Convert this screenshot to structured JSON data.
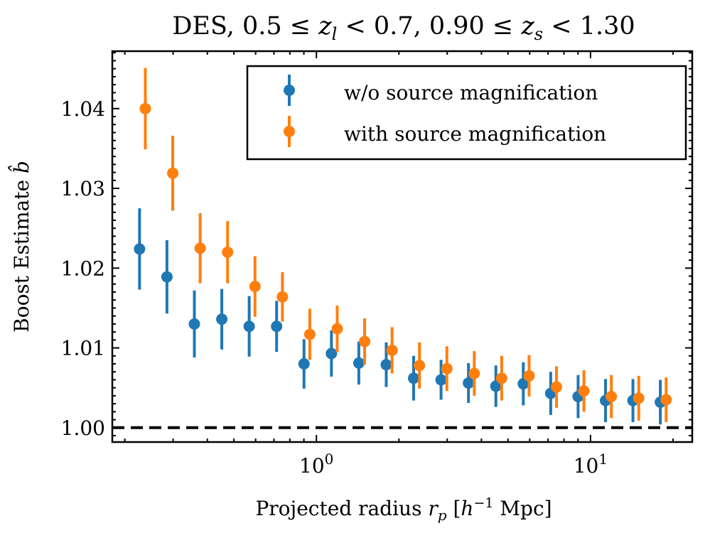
{
  "chart_data": {
    "type": "scatter",
    "title": "DES, 0.5 ≤ z_l < 0.7, 0.90 ≤ z_s < 1.30",
    "title_parts": [
      "DES, 0.5 ≤ ",
      "z",
      "l",
      " < 0.7, 0.90 ≤ ",
      "z",
      "s",
      " < 1.30"
    ],
    "xlabel": "Projected radius r_p [h^-1 Mpc]",
    "xlabel_parts": [
      "Projected radius ",
      "r",
      "p",
      " [",
      "h",
      "−1",
      " Mpc]"
    ],
    "ylabel": "Boost Estimate b̂",
    "ylabel_parts": [
      "Boost Estimate ",
      "b̂"
    ],
    "xscale": "log",
    "xlim": [
      0.18,
      23.5
    ],
    "ylim": [
      0.9982,
      1.0472
    ],
    "yticks": [
      1.0,
      1.01,
      1.02,
      1.03,
      1.04
    ],
    "ytick_labels": [
      "1.00",
      "1.01",
      "1.02",
      "1.03",
      "1.04"
    ],
    "xticks": [
      1,
      10
    ],
    "xtick_labels": [
      {
        "base": "10",
        "exp": "0"
      },
      {
        "base": "10",
        "exp": "1"
      }
    ],
    "reference_line": {
      "y": 1.0,
      "style": "dashed",
      "color": "#000000"
    },
    "grid": false,
    "legend_position": "top-right",
    "series": [
      {
        "name": "w/o source magnification",
        "color": "#1f77b4",
        "x": [
          0.2263,
          0.2849,
          0.3587,
          0.4516,
          0.5685,
          0.7157,
          0.901,
          1.1343,
          1.428,
          1.7977,
          2.2632,
          2.8492,
          3.5869,
          4.5156,
          5.6849,
          7.1568,
          9.01,
          11.343,
          14.28,
          17.977
        ],
        "y": [
          1.0224,
          1.0189,
          1.013,
          1.0136,
          1.0127,
          1.0127,
          1.008,
          1.0093,
          1.0081,
          1.0079,
          1.0062,
          1.006,
          1.0056,
          1.0052,
          1.0055,
          1.0043,
          1.0039,
          1.0034,
          1.0034,
          1.0032
        ],
        "yerr": [
          0.0051,
          0.0046,
          0.0042,
          0.0038,
          0.0038,
          0.0032,
          0.0031,
          0.0029,
          0.0027,
          0.0028,
          0.0028,
          0.0025,
          0.0025,
          0.0026,
          0.0027,
          0.0027,
          0.0027,
          0.0027,
          0.0027,
          0.0028
        ]
      },
      {
        "name": "with source magnification",
        "color": "#ff7f0e",
        "x": [
          0.2376,
          0.2991,
          0.3766,
          0.4741,
          0.5969,
          0.7515,
          0.946,
          1.191,
          1.4994,
          1.8876,
          2.3763,
          2.9916,
          3.7662,
          4.7414,
          5.9691,
          7.5146,
          9.4605,
          11.91,
          14.994,
          18.876
        ],
        "y": [
          1.04,
          1.0319,
          1.0225,
          1.022,
          1.0177,
          1.0164,
          1.0117,
          1.0124,
          1.0108,
          1.0097,
          1.0078,
          1.0074,
          1.0068,
          1.0062,
          1.0065,
          1.0051,
          1.0046,
          1.0039,
          1.0037,
          1.0035
        ],
        "yerr": [
          0.0051,
          0.0047,
          0.0044,
          0.0039,
          0.0038,
          0.0031,
          0.0032,
          0.0029,
          0.0029,
          0.0029,
          0.0029,
          0.0028,
          0.0028,
          0.0028,
          0.0026,
          0.0026,
          0.0026,
          0.0027,
          0.0028,
          0.0028
        ]
      }
    ]
  }
}
